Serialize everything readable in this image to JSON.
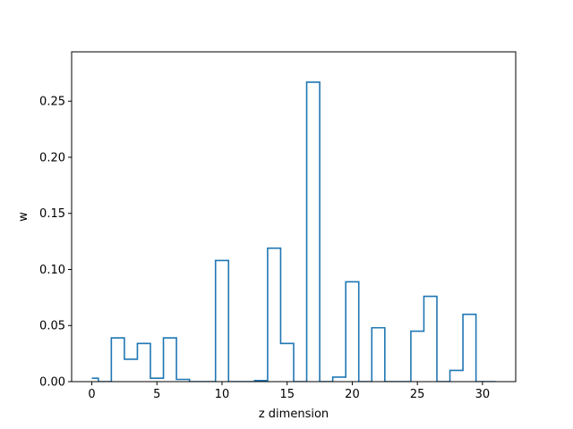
{
  "chart_data": {
    "type": "step",
    "title": "",
    "xlabel": "z dimension",
    "ylabel": "w",
    "xlim": [
      -1.55,
      32.55
    ],
    "ylim": [
      0,
      0.294
    ],
    "xticks": [
      0,
      5,
      10,
      15,
      20,
      25,
      30
    ],
    "xtick_labels": [
      "0",
      "5",
      "10",
      "15",
      "20",
      "25",
      "30"
    ],
    "yticks": [
      0.0,
      0.05,
      0.1,
      0.15,
      0.2,
      0.25
    ],
    "ytick_labels": [
      "0.00",
      "0.05",
      "0.10",
      "0.15",
      "0.20",
      "0.25"
    ],
    "grid": false,
    "step_where": "mid",
    "line_color": "#1f77b4",
    "series": [
      {
        "x": [
          0,
          1,
          2,
          3,
          4,
          5,
          6,
          7,
          8,
          9,
          10,
          11,
          12,
          13,
          14,
          15,
          16,
          17,
          18,
          19,
          20,
          21,
          22,
          23,
          24,
          25,
          26,
          27,
          28,
          29,
          30,
          31
        ],
        "values": [
          0.003,
          0.0,
          0.039,
          0.02,
          0.034,
          0.003,
          0.039,
          0.002,
          0.0,
          0.0,
          0.108,
          0.0,
          0.0,
          0.001,
          0.119,
          0.034,
          0.0,
          0.267,
          0.0,
          0.004,
          0.089,
          0.0,
          0.048,
          0.0,
          0.0,
          0.045,
          0.076,
          0.0,
          0.01,
          0.06,
          0.0,
          0.0
        ]
      }
    ]
  }
}
